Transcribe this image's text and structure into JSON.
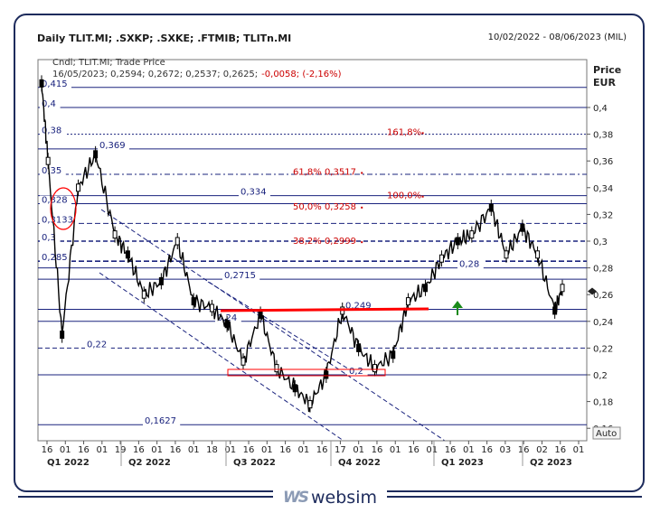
{
  "header": {
    "title": "Daily TLIT.MI; .SXKP; .SXKE; .FTMIB; TLITn.MI",
    "date_range": "10/02/2022 - 08/06/2023 (MIL)"
  },
  "legend": {
    "line1": "Cndl; TLIT.MI; Trade Price",
    "ohlc": "16/05/2023; 0,2594; 0,2672; 0,2537; 0,2625;",
    "change": "-0,0058; (-2,16%)"
  },
  "axis": {
    "price_label": "Price",
    "currency_label": "EUR",
    "auto_label": "Auto",
    "yticks": [
      "0,4",
      "0,38",
      "0,36",
      "0,34",
      "0,32",
      "0,3",
      "0,28",
      "0,26",
      "0,24",
      "0,22",
      "0,2",
      "0,18",
      "0,16"
    ],
    "xticks": [
      "16",
      "01",
      "16",
      "01",
      "19",
      "16",
      "01",
      "16",
      "01",
      "18",
      "01",
      "16",
      "01",
      "16",
      "01",
      "16",
      "17",
      "01",
      "16",
      "01",
      "16",
      "01",
      "16",
      "01",
      "16",
      "03",
      "16",
      "02",
      "16",
      "01"
    ],
    "quarters": [
      "Q1 2022",
      "Q2 2022",
      "Q3 2022",
      "Q4 2022",
      "Q1 2023",
      "Q2 2023"
    ]
  },
  "colors": {
    "candles": "#000000",
    "levels": "#1a237e",
    "fibo": "#cc0000",
    "resistance": "#ff0000",
    "arrow": "#1a8a1a",
    "frame": "#1d2b5c"
  },
  "brand": {
    "mark": "WS",
    "name": "websim"
  },
  "chart_data": {
    "type": "candlestick",
    "title": "Daily TLIT.MI; .SXKP; .SXKE; .FTMIB; TLITn.MI",
    "ylabel": "Price EUR",
    "ylim": [
      0.15,
      0.41
    ],
    "x": [
      "2022-02-10",
      "2022-02-16",
      "2022-03-01",
      "2022-03-16",
      "2022-04-01",
      "2022-04-19",
      "2022-05-01",
      "2022-05-16",
      "2022-06-01",
      "2022-06-16",
      "2022-07-01",
      "2022-07-18",
      "2022-08-01",
      "2022-08-16",
      "2022-09-01",
      "2022-09-16",
      "2022-10-03",
      "2022-10-17",
      "2022-11-01",
      "2022-11-16",
      "2022-12-01",
      "2022-12-16",
      "2023-01-02",
      "2023-01-16",
      "2023-02-01",
      "2023-02-16",
      "2023-03-03",
      "2023-03-16",
      "2023-04-03",
      "2023-04-17",
      "2023-05-02",
      "2023-05-16",
      "2023-06-01",
      "2023-06-08"
    ],
    "close": [
      0.418,
      0.36,
      0.23,
      0.34,
      0.365,
      0.305,
      0.29,
      0.26,
      0.27,
      0.3,
      0.255,
      0.25,
      0.238,
      0.21,
      0.245,
      0.205,
      0.19,
      0.178,
      0.2,
      0.248,
      0.22,
      0.205,
      0.215,
      0.255,
      0.265,
      0.287,
      0.3,
      0.305,
      0.325,
      0.29,
      0.31,
      0.29,
      0.248,
      0.265
    ],
    "levels": [
      {
        "label": "0,415",
        "value": 0.415
      },
      {
        "label": "0,4",
        "value": 0.4
      },
      {
        "label": "0,38",
        "value": 0.38
      },
      {
        "label": "0,369",
        "value": 0.369
      },
      {
        "label": "0,35",
        "value": 0.35
      },
      {
        "label": "0,334",
        "value": 0.334
      },
      {
        "label": "0,328",
        "value": 0.328
      },
      {
        "label": "0,3133",
        "value": 0.3133
      },
      {
        "label": "0,3",
        "value": 0.3
      },
      {
        "label": "0,285",
        "value": 0.285
      },
      {
        "label": "0,28",
        "value": 0.28
      },
      {
        "label": "0,2715",
        "value": 0.2715
      },
      {
        "label": "0,249",
        "value": 0.249
      },
      {
        "label": "0,24",
        "value": 0.24
      },
      {
        "label": "0,22",
        "value": 0.22
      },
      {
        "label": "0,2",
        "value": 0.2
      },
      {
        "label": "0,1627",
        "value": 0.1627
      }
    ],
    "fibonacci": [
      {
        "label": "161,8%",
        "value": 0.3815
      },
      {
        "label": "61,8% 0,3517",
        "value": 0.3517
      },
      {
        "label": "100,0%",
        "value": 0.334
      },
      {
        "label": "50,0% 0,3258",
        "value": 0.3258
      },
      {
        "label": "38,2% 0,2999",
        "value": 0.2999
      }
    ],
    "last_price": 0.2625
  }
}
